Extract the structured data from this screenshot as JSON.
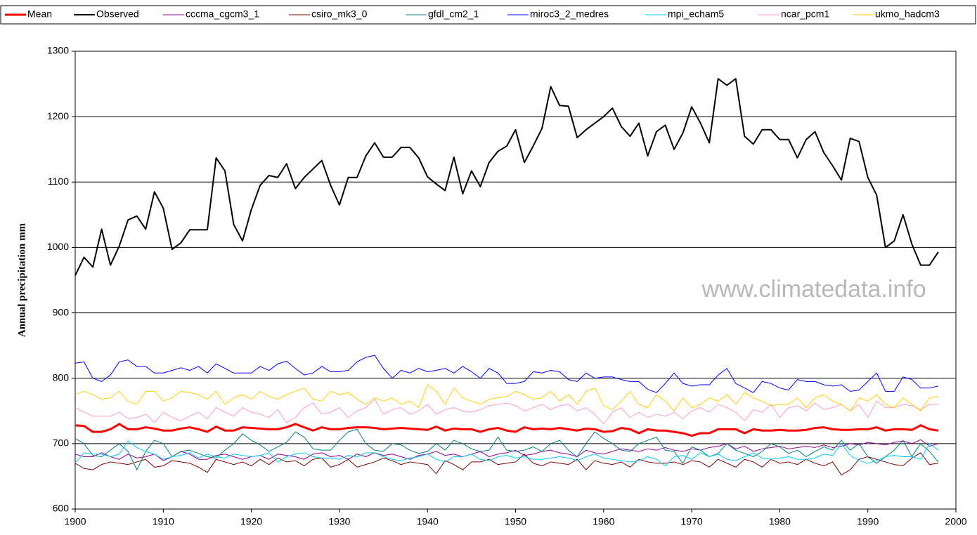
{
  "chart_data": {
    "type": "line",
    "y_label": "Annual precipitation mm",
    "annotation": "www.climatedata.info",
    "xlim": [
      1900,
      2000
    ],
    "xticks": [
      1900,
      1910,
      1920,
      1930,
      1940,
      1950,
      1960,
      1970,
      1980,
      1990,
      2000
    ],
    "ylim": [
      600,
      1300
    ],
    "yticks": [
      600,
      700,
      800,
      900,
      1000,
      1100,
      1200,
      1300
    ],
    "grid": true,
    "legend": "top",
    "x": [
      1900,
      1901,
      1902,
      1903,
      1904,
      1905,
      1906,
      1907,
      1908,
      1909,
      1910,
      1911,
      1912,
      1913,
      1914,
      1915,
      1916,
      1917,
      1918,
      1919,
      1920,
      1921,
      1922,
      1923,
      1924,
      1925,
      1926,
      1927,
      1928,
      1929,
      1930,
      1931,
      1932,
      1933,
      1934,
      1935,
      1936,
      1937,
      1938,
      1939,
      1940,
      1941,
      1942,
      1943,
      1944,
      1945,
      1946,
      1947,
      1948,
      1949,
      1950,
      1951,
      1952,
      1953,
      1954,
      1955,
      1956,
      1957,
      1958,
      1959,
      1960,
      1961,
      1962,
      1963,
      1964,
      1965,
      1966,
      1967,
      1968,
      1969,
      1970,
      1971,
      1972,
      1973,
      1974,
      1975,
      1976,
      1977,
      1978,
      1979,
      1980,
      1981,
      1982,
      1983,
      1984,
      1985,
      1986,
      1987,
      1988,
      1989,
      1990,
      1991,
      1992,
      1993,
      1994,
      1995,
      1996,
      1997,
      1998
    ],
    "series": [
      {
        "name": "Mean",
        "color": "#ff0000",
        "values": [
          728,
          727,
          718,
          718,
          722,
          730,
          722,
          722,
          725,
          723,
          720,
          720,
          723,
          725,
          722,
          718,
          726,
          720,
          720,
          725,
          724,
          723,
          722,
          722,
          725,
          730,
          725,
          720,
          725,
          722,
          722,
          724,
          725,
          725,
          724,
          722,
          723,
          724,
          723,
          722,
          721,
          726,
          720,
          723,
          722,
          722,
          718,
          722,
          724,
          720,
          718,
          725,
          722,
          723,
          722,
          724,
          722,
          720,
          723,
          722,
          718,
          719,
          724,
          722,
          716,
          722,
          720,
          720,
          718,
          716,
          712,
          716,
          716,
          722,
          722,
          722,
          716,
          722,
          720,
          720,
          721,
          720,
          720,
          721,
          724,
          725,
          722,
          721,
          721,
          722,
          722,
          725,
          720,
          722,
          722,
          721,
          728,
          722,
          720
        ]
      },
      {
        "name": "Observed",
        "color": "#000000",
        "values": [
          957,
          985,
          970,
          1028,
          973,
          1002,
          1042,
          1048,
          1028,
          1085,
          1060,
          997,
          1007,
          1027,
          1027,
          1027,
          1137,
          1117,
          1035,
          1010,
          1058,
          1095,
          1110,
          1107,
          1128,
          1090,
          1107,
          1120,
          1133,
          1095,
          1065,
          1107,
          1107,
          1140,
          1160,
          1138,
          1138,
          1153,
          1153,
          1137,
          1108,
          1097,
          1087,
          1138,
          1082,
          1117,
          1093,
          1130,
          1147,
          1155,
          1180,
          1130,
          1155,
          1182,
          1246,
          1217,
          1216,
          1168,
          1180,
          1190,
          1200,
          1213,
          1185,
          1170,
          1190,
          1140,
          1177,
          1187,
          1150,
          1175,
          1215,
          1190,
          1160,
          1258,
          1248,
          1258,
          1170,
          1158,
          1180,
          1180,
          1165,
          1165,
          1137,
          1165,
          1177,
          1145,
          1125,
          1103,
          1167,
          1162,
          1107,
          1080,
          1000,
          1010,
          1050,
          1005,
          973,
          973,
          993
        ]
      },
      {
        "name": "cccma_cgcm3_1",
        "color": "#990099",
        "values": [
          684,
          680,
          680,
          686,
          680,
          676,
          684,
          678,
          680,
          684,
          674,
          680,
          688,
          684,
          676,
          676,
          682,
          684,
          680,
          676,
          680,
          682,
          676,
          684,
          682,
          680,
          676,
          684,
          686,
          680,
          682,
          676,
          684,
          680,
          686,
          682,
          684,
          680,
          676,
          682,
          684,
          688,
          682,
          684,
          680,
          684,
          688,
          680,
          684,
          686,
          690,
          682,
          684,
          688,
          690,
          686,
          684,
          680,
          690,
          686,
          684,
          688,
          692,
          690,
          688,
          692,
          690,
          694,
          690,
          688,
          692,
          690,
          694,
          696,
          700,
          692,
          696,
          688,
          692,
          694,
          696,
          692,
          694,
          696,
          694,
          698,
          694,
          696,
          700,
          698,
          702,
          700,
          698,
          702,
          704,
          700,
          706,
          696,
          700
        ]
      },
      {
        "name": "csiro_mk3_0",
        "color": "#800000",
        "values": [
          670,
          662,
          660,
          668,
          672,
          670,
          668,
          672,
          676,
          664,
          666,
          674,
          672,
          670,
          664,
          656,
          676,
          672,
          668,
          672,
          666,
          676,
          668,
          678,
          672,
          674,
          666,
          676,
          678,
          664,
          668,
          676,
          664,
          668,
          672,
          678,
          674,
          668,
          672,
          670,
          668,
          654,
          674,
          668,
          660,
          672,
          672,
          676,
          668,
          670,
          672,
          684,
          670,
          666,
          672,
          670,
          668,
          676,
          660,
          674,
          670,
          668,
          672,
          664,
          676,
          672,
          670,
          670,
          672,
          668,
          674,
          672,
          664,
          676,
          670,
          664,
          676,
          672,
          664,
          676,
          670,
          672,
          668,
          676,
          670,
          666,
          672,
          652,
          660,
          676,
          680,
          676,
          672,
          668,
          666,
          678,
          686,
          668,
          670
        ]
      },
      {
        "name": "gfdl_cm2_1",
        "color": "#008080",
        "values": [
          708,
          700,
          682,
          680,
          690,
          700,
          688,
          660,
          688,
          705,
          700,
          680,
          688,
          690,
          685,
          680,
          678,
          690,
          700,
          715,
          705,
          698,
          688,
          695,
          702,
          718,
          710,
          692,
          690,
          690,
          705,
          718,
          722,
          700,
          690,
          688,
          700,
          698,
          690,
          685,
          688,
          700,
          690,
          705,
          700,
          692,
          688,
          690,
          710,
          690,
          688,
          690,
          695,
          688,
          700,
          705,
          690,
          680,
          700,
          718,
          708,
          700,
          690,
          688,
          700,
          705,
          710,
          690,
          688,
          670,
          695,
          690,
          680,
          685,
          700,
          690,
          685,
          680,
          688,
          700,
          695,
          685,
          690,
          680,
          688,
          695,
          690,
          705,
          690,
          700,
          680,
          670,
          680,
          690,
          705,
          680,
          700,
          688,
          672
        ]
      },
      {
        "name": "miroc3_2_medres",
        "color": "#0000ff",
        "values": [
          823,
          825,
          800,
          795,
          805,
          825,
          828,
          818,
          818,
          808,
          808,
          812,
          816,
          812,
          818,
          808,
          822,
          815,
          808,
          808,
          808,
          818,
          812,
          822,
          826,
          815,
          805,
          808,
          818,
          810,
          810,
          812,
          825,
          832,
          835,
          815,
          800,
          812,
          808,
          815,
          810,
          812,
          815,
          808,
          818,
          810,
          800,
          815,
          808,
          792,
          792,
          795,
          810,
          808,
          812,
          810,
          798,
          795,
          808,
          800,
          802,
          802,
          798,
          795,
          795,
          783,
          778,
          792,
          808,
          792,
          788,
          790,
          790,
          805,
          815,
          792,
          785,
          778,
          795,
          792,
          785,
          782,
          798,
          795,
          795,
          790,
          788,
          790,
          780,
          782,
          795,
          808,
          780,
          780,
          802,
          798,
          785,
          785,
          788
        ]
      },
      {
        "name": "mpi_echam5",
        "color": "#00ccff",
        "values": [
          670,
          686,
          684,
          684,
          680,
          684,
          704,
          694,
          688,
          684,
          676,
          680,
          682,
          686,
          678,
          684,
          680,
          678,
          684,
          682,
          680,
          682,
          686,
          672,
          680,
          684,
          686,
          680,
          678,
          678,
          676,
          682,
          680,
          686,
          686,
          680,
          676,
          674,
          678,
          680,
          684,
          676,
          672,
          680,
          680,
          684,
          676,
          674,
          680,
          682,
          678,
          680,
          676,
          676,
          678,
          680,
          678,
          674,
          680,
          684,
          678,
          676,
          674,
          672,
          674,
          680,
          676,
          666,
          680,
          682,
          676,
          686,
          680,
          684,
          676,
          674,
          680,
          686,
          678,
          676,
          678,
          680,
          676,
          676,
          678,
          684,
          682,
          700,
          682,
          674,
          670,
          674,
          680,
          682,
          680,
          680,
          676,
          700,
          690
        ]
      },
      {
        "name": "ncar_pcm1",
        "color": "#ff99cc",
        "values": [
          755,
          748,
          742,
          742,
          742,
          748,
          738,
          740,
          745,
          732,
          748,
          740,
          735,
          742,
          748,
          738,
          755,
          748,
          742,
          755,
          748,
          745,
          740,
          752,
          732,
          740,
          755,
          762,
          745,
          748,
          755,
          740,
          750,
          755,
          768,
          745,
          752,
          755,
          745,
          750,
          760,
          745,
          752,
          755,
          750,
          748,
          752,
          758,
          760,
          762,
          758,
          750,
          755,
          760,
          752,
          758,
          760,
          750,
          755,
          745,
          730,
          748,
          755,
          740,
          748,
          740,
          745,
          742,
          748,
          738,
          750,
          755,
          748,
          760,
          755,
          748,
          735,
          752,
          748,
          760,
          740,
          755,
          758,
          750,
          762,
          752,
          755,
          760,
          750,
          760,
          740,
          765,
          755,
          755,
          760,
          758,
          752,
          760,
          760
        ]
      },
      {
        "name": "ukmo_hadcm3",
        "color": "#ffcc00",
        "values": [
          775,
          780,
          775,
          768,
          770,
          780,
          765,
          760,
          780,
          780,
          765,
          770,
          780,
          778,
          775,
          768,
          780,
          760,
          770,
          775,
          768,
          780,
          772,
          768,
          775,
          780,
          785,
          768,
          765,
          780,
          775,
          778,
          768,
          760,
          770,
          765,
          770,
          760,
          765,
          755,
          790,
          780,
          760,
          785,
          770,
          765,
          760,
          768,
          770,
          772,
          780,
          775,
          768,
          770,
          780,
          765,
          775,
          760,
          780,
          785,
          758,
          752,
          765,
          780,
          760,
          755,
          775,
          765,
          750,
          770,
          755,
          760,
          770,
          765,
          775,
          760,
          778,
          770,
          765,
          758,
          760,
          760,
          770,
          755,
          770,
          775,
          765,
          760,
          750,
          770,
          765,
          775,
          760,
          755,
          770,
          760,
          750,
          770,
          772
        ]
      }
    ]
  }
}
